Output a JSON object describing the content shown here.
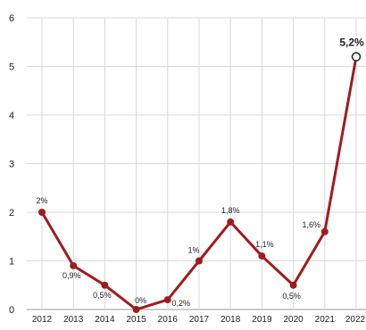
{
  "chart_data": {
    "type": "line",
    "title": "",
    "xlabel": "",
    "ylabel": "",
    "ylim": [
      0,
      6
    ],
    "grid": true,
    "legend": "none",
    "line_color": "#a01c1c",
    "grid_color": "#d9d9d9",
    "categories": [
      "2012",
      "2013",
      "2014",
      "2015",
      "2016",
      "2017",
      "2018",
      "2019",
      "2020",
      "2021",
      "2022"
    ],
    "y_ticks": [
      "0",
      "1",
      "2",
      "3",
      "4",
      "5",
      "6"
    ],
    "series": [
      {
        "values": [
          2,
          0.9,
          0.5,
          0,
          0.2,
          1,
          1.8,
          1.1,
          0.5,
          1.6,
          5.2
        ],
        "data_labels": [
          "2%",
          "0,9%",
          "0,5%",
          "0%",
          "0,2%",
          "1%",
          "1,8%",
          "1,1%",
          "0,5%",
          "1,6%",
          "5,2%"
        ]
      }
    ]
  }
}
